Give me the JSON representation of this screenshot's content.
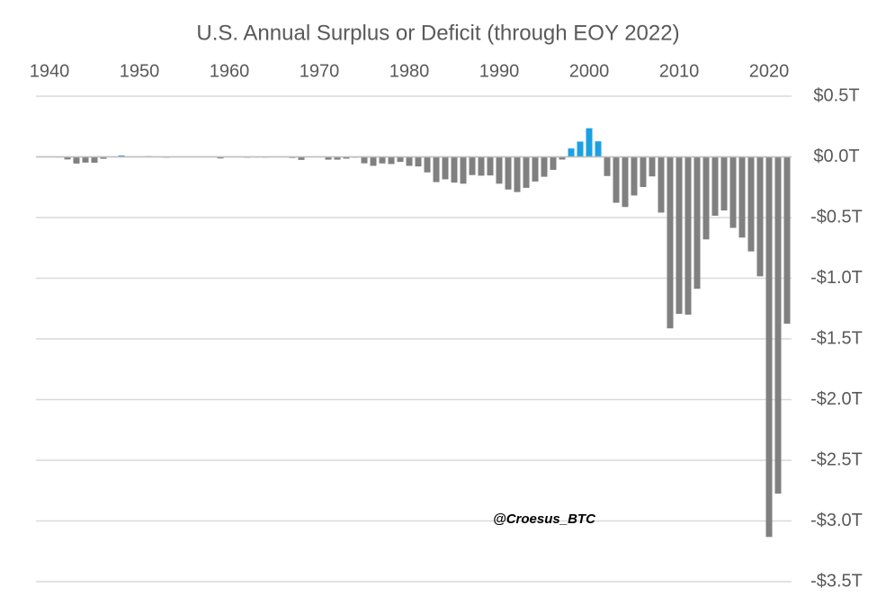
{
  "chart_data": {
    "type": "bar",
    "title": "U.S. Annual Surplus or Deficit (through EOY 2022)",
    "annotation": "@Croesus_BTC",
    "x": [
      1940,
      1941,
      1942,
      1943,
      1944,
      1945,
      1946,
      1947,
      1948,
      1949,
      1950,
      1951,
      1952,
      1953,
      1954,
      1955,
      1956,
      1957,
      1958,
      1959,
      1960,
      1961,
      1962,
      1963,
      1964,
      1965,
      1966,
      1967,
      1968,
      1969,
      1970,
      1971,
      1972,
      1973,
      1974,
      1975,
      1976,
      1977,
      1978,
      1979,
      1980,
      1981,
      1982,
      1983,
      1984,
      1985,
      1986,
      1987,
      1988,
      1989,
      1990,
      1991,
      1992,
      1993,
      1994,
      1995,
      1996,
      1997,
      1998,
      1999,
      2000,
      2001,
      2002,
      2003,
      2004,
      2005,
      2006,
      2007,
      2008,
      2009,
      2010,
      2011,
      2012,
      2013,
      2014,
      2015,
      2016,
      2017,
      2018,
      2019,
      2020,
      2021,
      2022
    ],
    "values": [
      -0.003,
      -0.005,
      -0.021,
      -0.055,
      -0.047,
      -0.048,
      -0.016,
      0.004,
      0.012,
      0.001,
      -0.003,
      0.006,
      -0.002,
      -0.007,
      -0.001,
      -0.003,
      0.004,
      0.003,
      -0.003,
      -0.013,
      0.0,
      -0.003,
      -0.007,
      -0.005,
      -0.006,
      -0.001,
      -0.004,
      -0.009,
      -0.025,
      0.003,
      -0.003,
      -0.023,
      -0.023,
      -0.015,
      -0.006,
      -0.053,
      -0.074,
      -0.054,
      -0.059,
      -0.041,
      -0.074,
      -0.079,
      -0.128,
      -0.208,
      -0.185,
      -0.212,
      -0.221,
      -0.15,
      -0.155,
      -0.153,
      -0.221,
      -0.269,
      -0.29,
      -0.255,
      -0.203,
      -0.164,
      -0.107,
      -0.022,
      0.069,
      0.126,
      0.236,
      0.128,
      -0.158,
      -0.378,
      -0.413,
      -0.318,
      -0.248,
      -0.161,
      -0.459,
      -1.413,
      -1.294,
      -1.3,
      -1.087,
      -0.68,
      -0.485,
      -0.442,
      -0.585,
      -0.665,
      -0.779,
      -0.984,
      -3.132,
      -2.775,
      -1.375
    ],
    "color": "#808080",
    "positive_color": "#1ba1e2",
    "xlim": [
      1938.5,
      2022.5
    ],
    "xticks": [
      1940,
      1950,
      1960,
      1970,
      1980,
      1990,
      2000,
      2010,
      2020
    ],
    "ylim": [
      -3.5,
      0.5
    ],
    "yticks": [
      {
        "value": 0.5,
        "label": "$0.5T"
      },
      {
        "value": 0,
        "label": "$0.0T"
      },
      {
        "value": -0.5,
        "label": "-$0.5T"
      },
      {
        "value": -1,
        "label": "-$1.0T"
      },
      {
        "value": -1.5,
        "label": "-$1.5T"
      },
      {
        "value": -2,
        "label": "-$2.0T"
      },
      {
        "value": -2.5,
        "label": "-$2.5T"
      },
      {
        "value": -3,
        "label": "-$3.0T"
      },
      {
        "value": -3.5,
        "label": "-$3.5T"
      }
    ],
    "grid": true
  }
}
